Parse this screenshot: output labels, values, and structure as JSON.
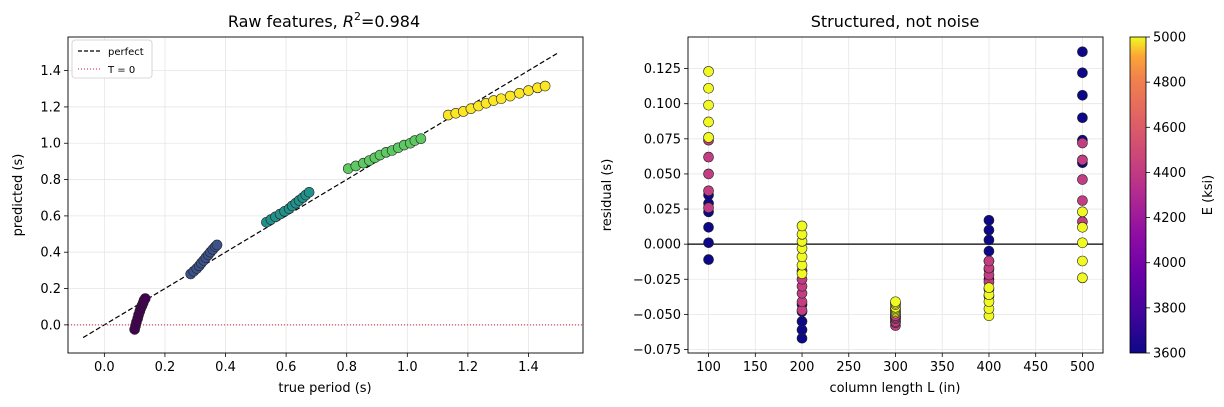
{
  "chart_data": [
    {
      "type": "scatter",
      "title_main": "Raw features, ",
      "title_r2": "R",
      "title_sup": "2",
      "title_value": "=0.984",
      "xlabel": "true period (s)",
      "ylabel": "predicted (s)",
      "xlim": [
        -0.12,
        1.58
      ],
      "ylim": [
        -0.155,
        1.585
      ],
      "xticks": [
        "0.0",
        "0.2",
        "0.4",
        "0.6",
        "0.8",
        "1.0",
        "1.2",
        "1.4"
      ],
      "xtick_values": [
        0.0,
        0.2,
        0.4,
        0.6,
        0.8,
        1.0,
        1.2,
        1.4
      ],
      "yticks": [
        "0.0",
        "0.2",
        "0.4",
        "0.6",
        "0.8",
        "1.0",
        "1.2",
        "1.4"
      ],
      "ytick_values": [
        0.0,
        0.2,
        0.4,
        0.6,
        0.8,
        1.0,
        1.2,
        1.4
      ],
      "grid": true,
      "legend_position": "top-left",
      "legend": [
        {
          "label": "perfect",
          "style": "dashed",
          "color": "#000000"
        },
        {
          "label": "T = 0",
          "style": "dotted",
          "color": "#dc143c"
        }
      ],
      "perfect_line": [
        [
          -0.07,
          -0.07
        ],
        [
          1.5,
          1.5
        ]
      ],
      "zero_line": 0.0,
      "clusters": [
        {
          "color": "#440154",
          "points": [
            [
              0.1,
              -0.025
            ],
            [
              0.103,
              -0.005
            ],
            [
              0.106,
              0.015
            ],
            [
              0.11,
              0.035
            ],
            [
              0.113,
              0.055
            ],
            [
              0.117,
              0.075
            ],
            [
              0.12,
              0.09
            ],
            [
              0.124,
              0.105
            ],
            [
              0.128,
              0.12
            ],
            [
              0.131,
              0.135
            ],
            [
              0.135,
              0.145
            ]
          ]
        },
        {
          "color": "#3b528b",
          "points": [
            [
              0.285,
              0.28
            ],
            [
              0.295,
              0.295
            ],
            [
              0.305,
              0.31
            ],
            [
              0.313,
              0.325
            ],
            [
              0.32,
              0.34
            ],
            [
              0.328,
              0.355
            ],
            [
              0.335,
              0.37
            ],
            [
              0.343,
              0.385
            ],
            [
              0.35,
              0.4
            ],
            [
              0.358,
              0.415
            ],
            [
              0.366,
              0.43
            ],
            [
              0.372,
              0.44
            ]
          ]
        },
        {
          "color": "#21918c",
          "points": [
            [
              0.535,
              0.565
            ],
            [
              0.55,
              0.58
            ],
            [
              0.565,
              0.595
            ],
            [
              0.58,
              0.61
            ],
            [
              0.595,
              0.625
            ],
            [
              0.61,
              0.64
            ],
            [
              0.62,
              0.655
            ],
            [
              0.632,
              0.67
            ],
            [
              0.643,
              0.685
            ],
            [
              0.655,
              0.7
            ],
            [
              0.665,
              0.715
            ],
            [
              0.676,
              0.73
            ]
          ]
        },
        {
          "color": "#5ec962",
          "points": [
            [
              0.805,
              0.86
            ],
            [
              0.83,
              0.875
            ],
            [
              0.855,
              0.89
            ],
            [
              0.875,
              0.905
            ],
            [
              0.893,
              0.92
            ],
            [
              0.91,
              0.935
            ],
            [
              0.93,
              0.95
            ],
            [
              0.95,
              0.96
            ],
            [
              0.97,
              0.975
            ],
            [
              0.99,
              0.99
            ],
            [
              1.01,
              1.0
            ],
            [
              1.025,
              1.015
            ],
            [
              1.045,
              1.025
            ]
          ]
        },
        {
          "color": "#fde725",
          "points": [
            [
              1.135,
              1.155
            ],
            [
              1.16,
              1.165
            ],
            [
              1.185,
              1.175
            ],
            [
              1.21,
              1.19
            ],
            [
              1.235,
              1.205
            ],
            [
              1.26,
              1.22
            ],
            [
              1.285,
              1.235
            ],
            [
              1.31,
              1.245
            ],
            [
              1.34,
              1.26
            ],
            [
              1.37,
              1.275
            ],
            [
              1.4,
              1.29
            ],
            [
              1.43,
              1.305
            ],
            [
              1.455,
              1.315
            ]
          ]
        }
      ]
    },
    {
      "type": "scatter",
      "title": "Structured, not noise",
      "xlabel": "column length L (in)",
      "ylabel": "residual (s)",
      "xlim": [
        78,
        522
      ],
      "ylim": [
        -0.0775,
        0.1475
      ],
      "xticks": [
        "100",
        "150",
        "200",
        "250",
        "300",
        "350",
        "400",
        "450",
        "500"
      ],
      "xtick_values": [
        100,
        150,
        200,
        250,
        300,
        350,
        400,
        450,
        500
      ],
      "yticks": [
        "−0.075",
        "−0.050",
        "−0.025",
        "0.000",
        "0.025",
        "0.050",
        "0.075",
        "0.100",
        "0.125"
      ],
      "ytick_values": [
        -0.075,
        -0.05,
        -0.025,
        0.0,
        0.025,
        0.05,
        0.075,
        0.1,
        0.125
      ],
      "grid": true,
      "zero_line": 0.0,
      "colorbar": {
        "label": "E (ksi)",
        "range": [
          3600,
          5000
        ],
        "ticks": [
          "3600",
          "3800",
          "4000",
          "4200",
          "4400",
          "4600",
          "4800",
          "5000"
        ],
        "tick_values": [
          3600,
          3800,
          4000,
          4200,
          4400,
          4600,
          4800,
          5000
        ]
      },
      "points": [
        [
          100,
          -0.011,
          3600
        ],
        [
          100,
          0.001,
          3600
        ],
        [
          100,
          0.012,
          3600
        ],
        [
          100,
          0.023,
          3600
        ],
        [
          100,
          0.029,
          3600
        ],
        [
          100,
          0.035,
          3600
        ],
        [
          100,
          0.026,
          4250
        ],
        [
          100,
          0.038,
          4250
        ],
        [
          100,
          0.05,
          4250
        ],
        [
          100,
          0.062,
          4250
        ],
        [
          100,
          0.074,
          4250
        ],
        [
          100,
          0.076,
          5000
        ],
        [
          100,
          0.087,
          5000
        ],
        [
          100,
          0.099,
          5000
        ],
        [
          100,
          0.111,
          5000
        ],
        [
          100,
          0.123,
          5000
        ],
        [
          200,
          -0.067,
          3600
        ],
        [
          200,
          -0.061,
          3600
        ],
        [
          200,
          -0.055,
          3600
        ],
        [
          200,
          -0.048,
          3600
        ],
        [
          200,
          -0.043,
          3600
        ],
        [
          200,
          -0.047,
          4250
        ],
        [
          200,
          -0.041,
          4250
        ],
        [
          200,
          -0.035,
          4250
        ],
        [
          200,
          -0.03,
          4250
        ],
        [
          200,
          -0.025,
          4250
        ],
        [
          200,
          -0.019,
          4250
        ],
        [
          200,
          -0.021,
          5000
        ],
        [
          200,
          -0.015,
          5000
        ],
        [
          200,
          -0.009,
          5000
        ],
        [
          200,
          -0.003,
          5000
        ],
        [
          200,
          0.002,
          5000
        ],
        [
          200,
          0.007,
          5000
        ],
        [
          200,
          0.013,
          5000
        ],
        [
          300,
          -0.055,
          3600
        ],
        [
          300,
          -0.053,
          3600
        ],
        [
          300,
          -0.052,
          3600
        ],
        [
          300,
          -0.051,
          3600
        ],
        [
          300,
          -0.05,
          3600
        ],
        [
          300,
          -0.058,
          4250
        ],
        [
          300,
          -0.056,
          4250
        ],
        [
          300,
          -0.055,
          4250
        ],
        [
          300,
          -0.053,
          4250
        ],
        [
          300,
          -0.052,
          4250
        ],
        [
          300,
          -0.051,
          4250
        ],
        [
          300,
          -0.049,
          5000
        ],
        [
          300,
          -0.048,
          5000
        ],
        [
          300,
          -0.047,
          5000
        ],
        [
          300,
          -0.046,
          5000
        ],
        [
          300,
          -0.045,
          5000
        ],
        [
          300,
          -0.043,
          5000
        ],
        [
          300,
          -0.042,
          5000
        ],
        [
          300,
          -0.041,
          5000
        ],
        [
          400,
          -0.025,
          3600
        ],
        [
          400,
          -0.018,
          3600
        ],
        [
          400,
          -0.012,
          3600
        ],
        [
          400,
          -0.005,
          3600
        ],
        [
          400,
          0.003,
          3600
        ],
        [
          400,
          0.01,
          3600
        ],
        [
          400,
          0.017,
          3600
        ],
        [
          400,
          -0.037,
          4250
        ],
        [
          400,
          -0.032,
          4250
        ],
        [
          400,
          -0.027,
          4250
        ],
        [
          400,
          -0.022,
          4250
        ],
        [
          400,
          -0.017,
          4250
        ],
        [
          400,
          -0.012,
          4250
        ],
        [
          400,
          -0.051,
          5000
        ],
        [
          400,
          -0.046,
          5000
        ],
        [
          400,
          -0.041,
          5000
        ],
        [
          400,
          -0.036,
          5000
        ],
        [
          400,
          -0.031,
          5000
        ],
        [
          500,
          0.137,
          3600
        ],
        [
          500,
          0.122,
          3600
        ],
        [
          500,
          0.106,
          3600
        ],
        [
          500,
          0.09,
          3600
        ],
        [
          500,
          0.074,
          3600
        ],
        [
          500,
          0.058,
          3600
        ],
        [
          500,
          0.016,
          4250
        ],
        [
          500,
          0.031,
          4250
        ],
        [
          500,
          0.046,
          4250
        ],
        [
          500,
          0.06,
          4250
        ],
        [
          500,
          0.072,
          4250
        ],
        [
          500,
          -0.024,
          5000
        ],
        [
          500,
          -0.012,
          5000
        ],
        [
          500,
          0.001,
          5000
        ],
        [
          500,
          0.012,
          5000
        ],
        [
          500,
          0.023,
          5000
        ]
      ]
    }
  ]
}
